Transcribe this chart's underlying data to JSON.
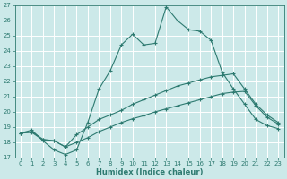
{
  "xlabel": "Humidex (Indice chaleur)",
  "bg_color": "#cce9e9",
  "grid_color": "#ffffff",
  "line_color": "#2d7a70",
  "xlim": [
    -0.5,
    23.5
  ],
  "ylim": [
    17,
    27
  ],
  "xticks": [
    0,
    1,
    2,
    3,
    4,
    5,
    6,
    7,
    8,
    9,
    10,
    11,
    12,
    13,
    14,
    15,
    16,
    17,
    18,
    19,
    20,
    21,
    22,
    23
  ],
  "yticks": [
    17,
    18,
    19,
    20,
    21,
    22,
    23,
    24,
    25,
    26,
    27
  ],
  "line1_x": [
    0,
    1,
    2,
    3,
    4,
    5,
    6,
    7,
    8,
    9,
    10,
    11,
    12,
    13,
    14,
    15,
    16,
    17,
    18,
    19,
    20,
    21,
    22,
    23
  ],
  "line1_y": [
    18.6,
    18.8,
    18.1,
    17.5,
    17.2,
    17.5,
    19.3,
    21.5,
    22.7,
    24.4,
    25.1,
    24.4,
    24.5,
    26.9,
    26.0,
    25.4,
    25.3,
    24.7,
    22.6,
    21.5,
    20.5,
    19.5,
    19.1,
    18.9
  ],
  "line2_x": [
    0,
    1,
    2,
    3,
    4,
    5,
    6,
    7,
    8,
    9,
    10,
    11,
    12,
    13,
    14,
    15,
    16,
    17,
    18,
    19,
    20,
    21,
    22,
    23
  ],
  "line2_y": [
    18.6,
    18.7,
    18.2,
    18.1,
    17.7,
    18.5,
    19.0,
    19.5,
    19.8,
    20.1,
    20.5,
    20.8,
    21.1,
    21.4,
    21.7,
    21.9,
    22.1,
    22.3,
    22.4,
    22.5,
    21.5,
    20.5,
    19.8,
    19.3
  ],
  "line3_x": [
    0,
    1,
    2,
    3,
    4,
    5,
    6,
    7,
    8,
    9,
    10,
    11,
    12,
    13,
    14,
    15,
    16,
    17,
    18,
    19,
    20,
    21,
    22,
    23
  ],
  "line3_y": [
    18.6,
    18.65,
    18.15,
    18.1,
    17.7,
    18.0,
    18.3,
    18.7,
    19.0,
    19.3,
    19.55,
    19.75,
    20.0,
    20.2,
    20.4,
    20.6,
    20.8,
    21.0,
    21.2,
    21.3,
    21.35,
    20.4,
    19.65,
    19.2
  ]
}
